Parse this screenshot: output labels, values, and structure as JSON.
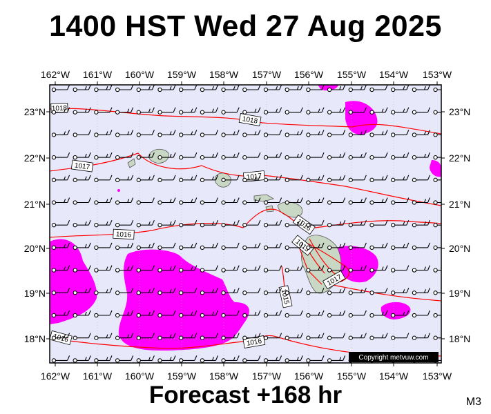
{
  "title": "1400 HST Wed 27 Aug 2025",
  "footer": "Forecast +168 hr",
  "model_tag": "M3",
  "copyright": "Copyright metvuw.com",
  "lon_labels": [
    "162°W",
    "161°W",
    "160°W",
    "159°W",
    "158°W",
    "157°W",
    "156°W",
    "155°W",
    "154°W",
    "153°W"
  ],
  "lat_labels": [
    "23°N",
    "22°N",
    "21°N",
    "20°N",
    "19°N",
    "18°N"
  ],
  "isobar_labels": [
    "1018",
    "1018",
    "1017",
    "1017",
    "1016",
    "1016",
    "1015",
    "1015",
    "1016",
    "1017",
    "1016"
  ],
  "colors": {
    "ocean": "#e8e8fb",
    "rain": "#ff00ff",
    "land": "#c9d8c4",
    "isobar": "#ff0000"
  }
}
